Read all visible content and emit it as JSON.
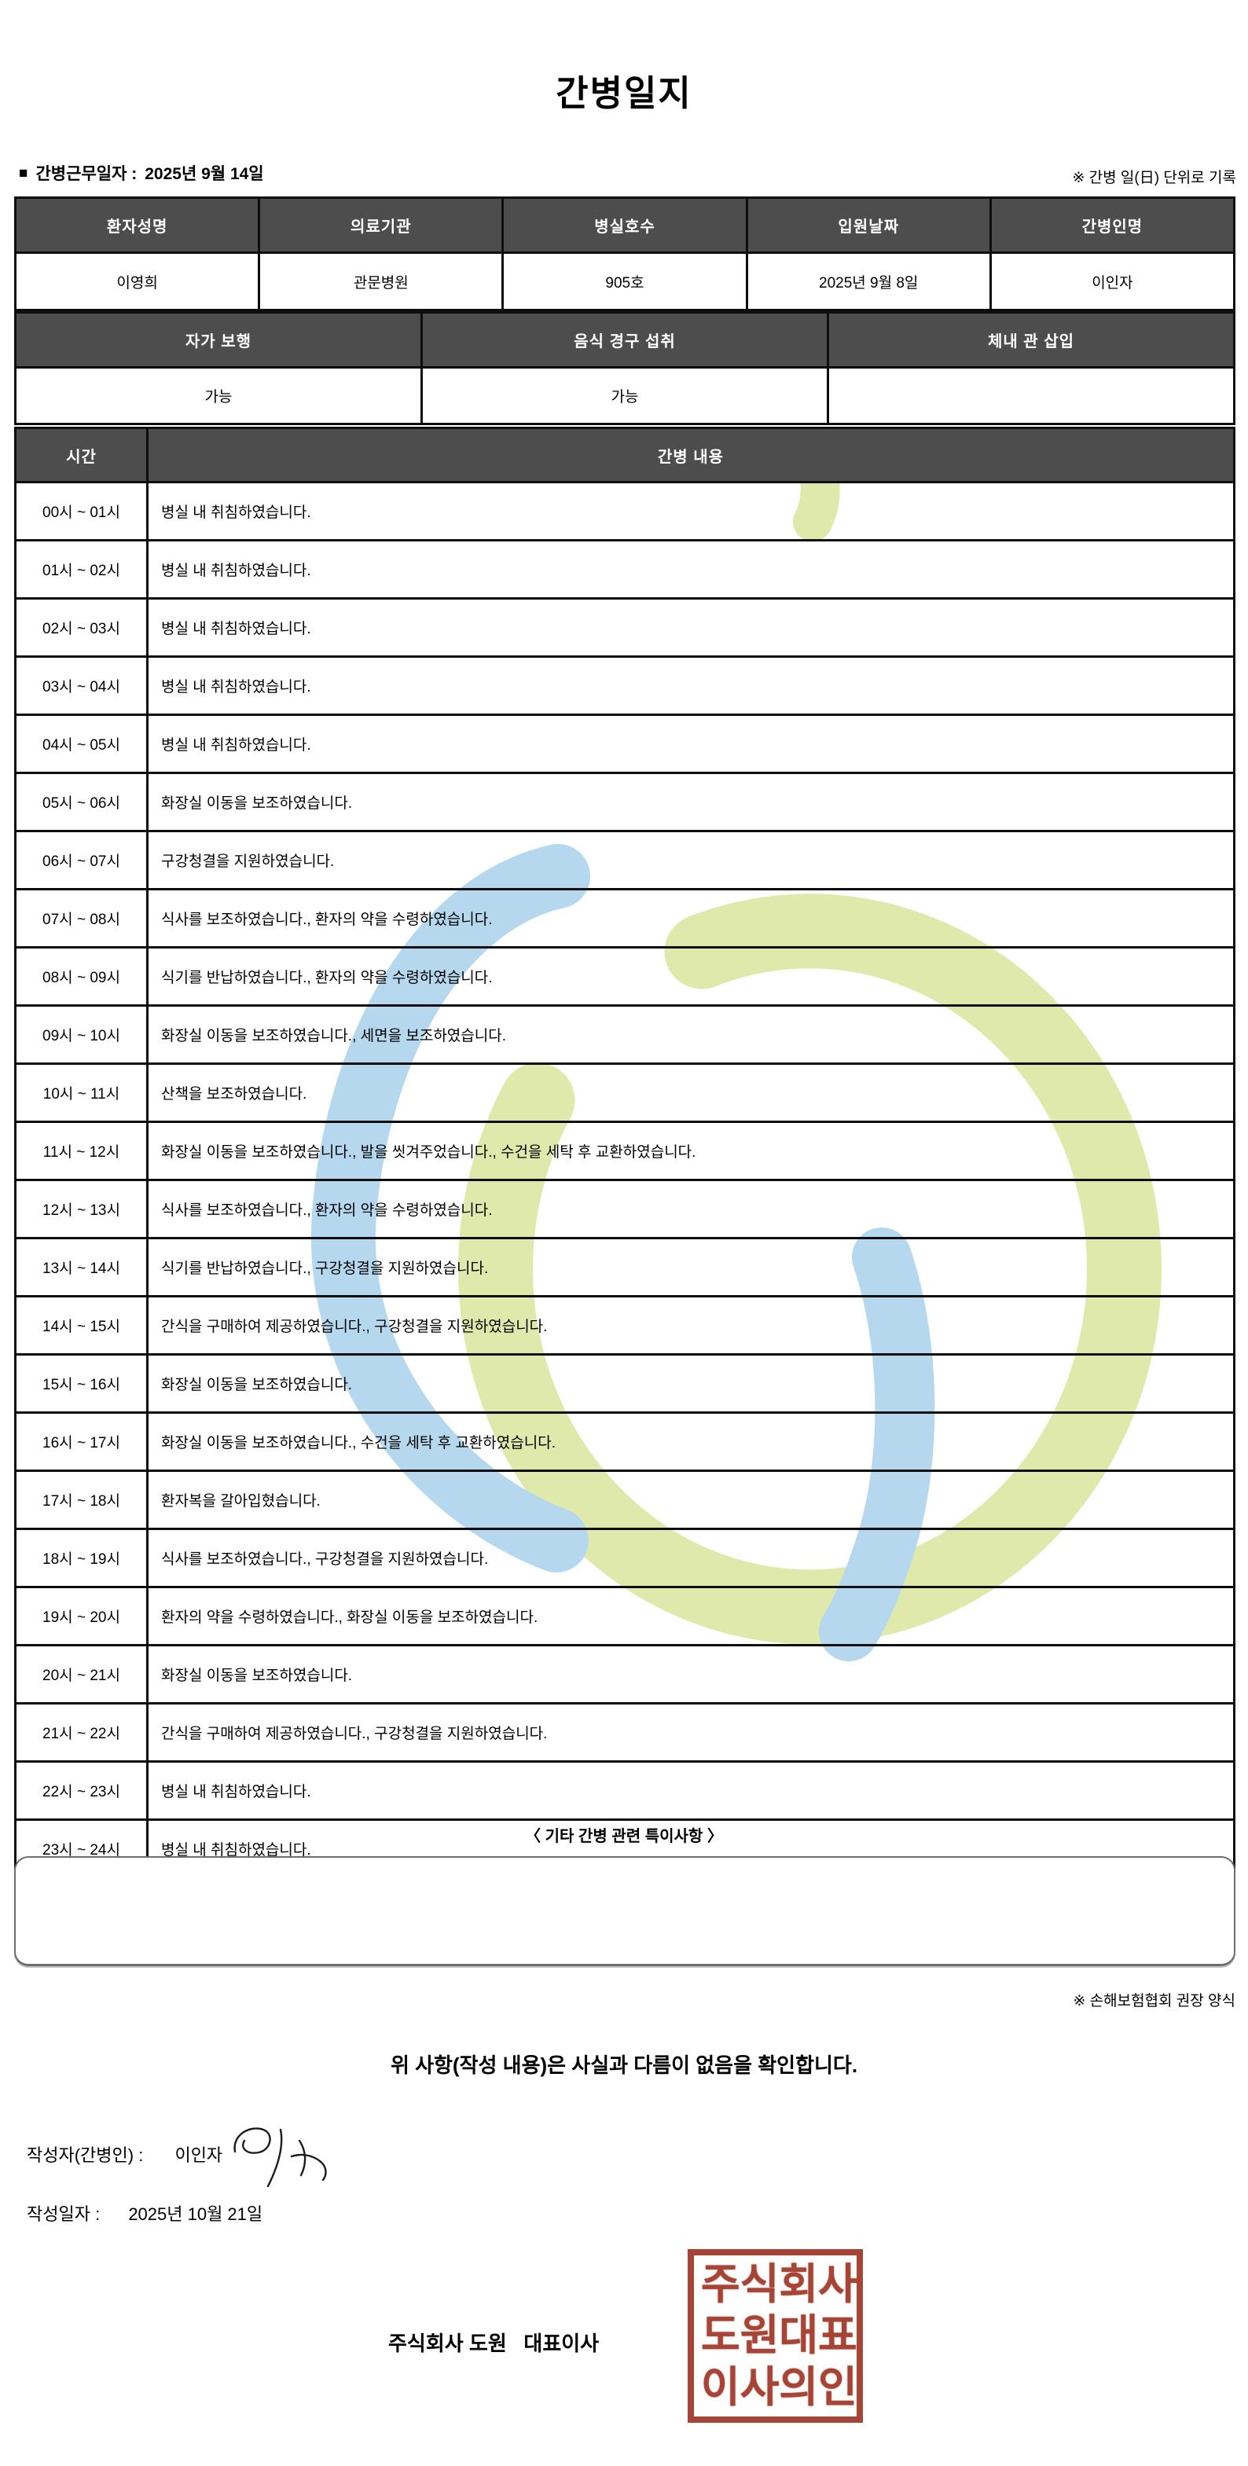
{
  "title": "간병일지",
  "meta": {
    "bullet": "■",
    "work_date_label": "간병근무일자 :",
    "work_date_value": "2025년 9월 14일",
    "unit_note": "※ 간병 일(日) 단위로 기록"
  },
  "patient_table": {
    "headers": [
      "환자성명",
      "의료기관",
      "병실호수",
      "입원날짜",
      "간병인명"
    ],
    "values": [
      "이영희",
      "관문병원",
      "905호",
      "2025년 9월 8일",
      "이인자"
    ]
  },
  "condition_table": {
    "headers": [
      "자가 보행",
      "음식 경구 섭취",
      "체내 관 삽입"
    ],
    "values": [
      "가능",
      "가능",
      ""
    ]
  },
  "care_log": {
    "time_header": "시간",
    "content_header": "간병 내용",
    "rows": [
      {
        "time": "00시 ~ 01시",
        "content": "병실 내 취침하였습니다."
      },
      {
        "time": "01시 ~ 02시",
        "content": "병실 내 취침하였습니다."
      },
      {
        "time": "02시 ~ 03시",
        "content": "병실 내 취침하였습니다."
      },
      {
        "time": "03시 ~ 04시",
        "content": "병실 내 취침하였습니다."
      },
      {
        "time": "04시 ~ 05시",
        "content": "병실 내 취침하였습니다."
      },
      {
        "time": "05시 ~ 06시",
        "content": "화장실 이동을 보조하였습니다."
      },
      {
        "time": "06시 ~ 07시",
        "content": "구강청결을 지원하였습니다."
      },
      {
        "time": "07시 ~ 08시",
        "content": "식사를 보조하였습니다., 환자의 약을 수령하였습니다."
      },
      {
        "time": "08시 ~ 09시",
        "content": "식기를 반납하였습니다., 환자의 약을 수령하였습니다."
      },
      {
        "time": "09시 ~ 10시",
        "content": "화장실 이동을 보조하였습니다., 세면을 보조하였습니다."
      },
      {
        "time": "10시 ~ 11시",
        "content": "산책을 보조하였습니다."
      },
      {
        "time": "11시 ~ 12시",
        "content": "화장실 이동을 보조하였습니다., 발을 씻겨주었습니다., 수건을 세탁 후 교환하였습니다."
      },
      {
        "time": "12시 ~ 13시",
        "content": "식사를 보조하였습니다., 환자의 약을 수령하였습니다."
      },
      {
        "time": "13시 ~ 14시",
        "content": "식기를 반납하였습니다., 구강청결을 지원하였습니다."
      },
      {
        "time": "14시 ~ 15시",
        "content": "간식을 구매하여 제공하였습니다., 구강청결을 지원하였습니다."
      },
      {
        "time": "15시 ~ 16시",
        "content": "화장실 이동을 보조하였습니다."
      },
      {
        "time": "16시 ~ 17시",
        "content": "화장실 이동을 보조하였습니다., 수건을 세탁 후 교환하였습니다."
      },
      {
        "time": "17시 ~ 18시",
        "content": "환자복을 갈아입혔습니다."
      },
      {
        "time": "18시 ~ 19시",
        "content": "식사를 보조하였습니다., 구강청결을 지원하였습니다."
      },
      {
        "time": "19시 ~ 20시",
        "content": "환자의 약을 수령하였습니다., 화장실 이동을 보조하였습니다."
      },
      {
        "time": "20시 ~ 21시",
        "content": "화장실 이동을 보조하였습니다."
      },
      {
        "time": "21시 ~ 22시",
        "content": "간식을 구매하여 제공하였습니다., 구강청결을 지원하였습니다."
      },
      {
        "time": "22시 ~ 23시",
        "content": "병실 내 취침하였습니다."
      },
      {
        "time": "23시 ~ 24시",
        "content": "병실 내 취침하였습니다."
      }
    ]
  },
  "notes": {
    "heading": "〈 기타 간병 관련 특이사항 〉",
    "content": "",
    "form_note": "※ 손해보험협회 권장 양식"
  },
  "footer": {
    "confirmation": "위 사항(작성 내용)은 사실과 다름이 없음을 확인합니다.",
    "author_label": "작성자(간병인) :",
    "author_name": "이인자",
    "date_label": "작성일자 :",
    "date_value": "2025년 10월 21일",
    "company_line": "주식회사 도원   대표이사"
  },
  "stamp": {
    "rows": [
      "주식회사",
      "도원대표",
      "이사의인"
    ]
  },
  "colors": {
    "table_header_bg": "#4d4d4d",
    "stamp_red": "#a23a2c",
    "watermark_green": "#dfe9ac",
    "watermark_blue": "#b5d8ee"
  }
}
